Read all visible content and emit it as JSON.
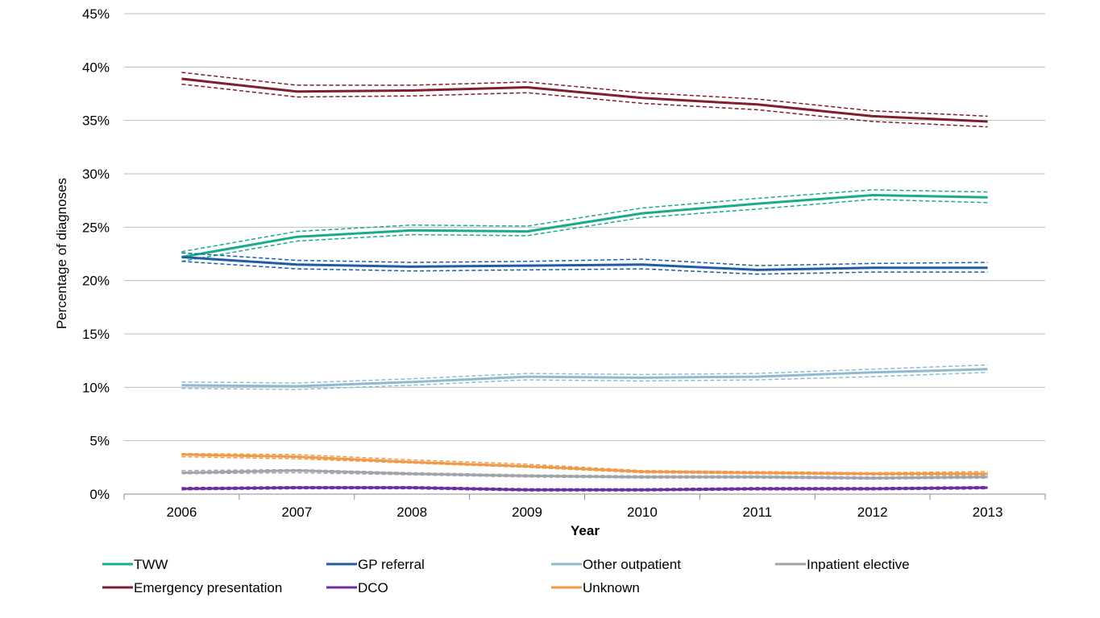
{
  "chart_data": {
    "type": "line",
    "title": "",
    "xlabel": "Year",
    "ylabel": "Percentage of diagnoses",
    "ylim": [
      0,
      45
    ],
    "y_tick_step": 5,
    "y_tick_suffix": "%",
    "grid": "horizontal",
    "legend_position": "bottom",
    "x": [
      "2006",
      "2007",
      "2008",
      "2009",
      "2010",
      "2011",
      "2012",
      "2013"
    ],
    "series": [
      {
        "name": "TWW",
        "color": "#1aab8b",
        "values": [
          22.2,
          24.1,
          24.7,
          24.6,
          26.3,
          27.2,
          28.0,
          27.8
        ],
        "lower": [
          21.8,
          23.7,
          24.3,
          24.2,
          25.9,
          26.7,
          27.6,
          27.3
        ],
        "upper": [
          22.7,
          24.6,
          25.2,
          25.1,
          26.8,
          27.7,
          28.5,
          28.3
        ]
      },
      {
        "name": "GP referral",
        "color": "#1f5ca6",
        "values": [
          22.2,
          21.5,
          21.3,
          21.4,
          21.5,
          21.0,
          21.2,
          21.2
        ],
        "lower": [
          21.8,
          21.1,
          20.9,
          21.0,
          21.1,
          20.6,
          20.8,
          20.8
        ],
        "upper": [
          22.6,
          21.9,
          21.7,
          21.8,
          22.0,
          21.4,
          21.6,
          21.7
        ]
      },
      {
        "name": "Other outpatient",
        "color": "#8fbbd0",
        "values": [
          10.2,
          10.1,
          10.5,
          11.0,
          10.9,
          11.0,
          11.4,
          11.7
        ],
        "lower": [
          9.9,
          9.8,
          10.2,
          10.7,
          10.6,
          10.7,
          11.0,
          11.4
        ],
        "upper": [
          10.5,
          10.4,
          10.8,
          11.3,
          11.2,
          11.3,
          11.7,
          12.1
        ]
      },
      {
        "name": "Inpatient elective",
        "color": "#a0a5ad",
        "values": [
          2.0,
          2.2,
          1.9,
          1.7,
          1.6,
          1.6,
          1.5,
          1.6
        ],
        "lower": [
          1.9,
          2.0,
          1.8,
          1.6,
          1.5,
          1.5,
          1.4,
          1.5
        ],
        "upper": [
          2.2,
          2.3,
          2.0,
          1.8,
          1.7,
          1.7,
          1.6,
          1.7
        ]
      },
      {
        "name": "Emergency presentation",
        "color": "#7f1f2e",
        "values": [
          38.9,
          37.7,
          37.8,
          38.1,
          37.1,
          36.5,
          35.4,
          34.9
        ],
        "lower": [
          38.4,
          37.2,
          37.3,
          37.6,
          36.6,
          36.0,
          34.9,
          34.4
        ],
        "upper": [
          39.5,
          38.3,
          38.3,
          38.6,
          37.6,
          37.0,
          35.9,
          35.4
        ]
      },
      {
        "name": "DCO",
        "color": "#6a2ea0",
        "values": [
          0.5,
          0.6,
          0.6,
          0.4,
          0.4,
          0.5,
          0.5,
          0.6
        ],
        "lower": [
          0.4,
          0.5,
          0.5,
          0.3,
          0.3,
          0.4,
          0.4,
          0.5
        ],
        "upper": [
          0.6,
          0.7,
          0.7,
          0.5,
          0.5,
          0.6,
          0.6,
          0.7
        ]
      },
      {
        "name": "Unknown",
        "color": "#ef9a4a",
        "values": [
          3.7,
          3.5,
          3.0,
          2.6,
          2.1,
          2.0,
          1.9,
          1.9
        ],
        "lower": [
          3.5,
          3.3,
          2.9,
          2.5,
          2.0,
          1.9,
          1.8,
          1.8
        ],
        "upper": [
          3.8,
          3.7,
          3.2,
          2.8,
          2.2,
          2.1,
          2.0,
          2.1
        ]
      }
    ]
  }
}
